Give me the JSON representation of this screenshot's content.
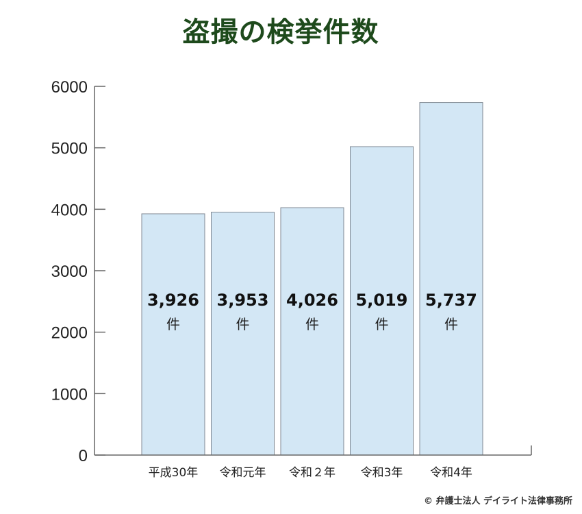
{
  "chart_data": {
    "type": "bar",
    "title": "盗撮の検挙件数",
    "categories": [
      "平成30年",
      "令和元年",
      "令和２年",
      "令和3年",
      "令和4年"
    ],
    "values": [
      3926,
      3953,
      4026,
      5019,
      5737
    ],
    "data_labels": [
      "3,926",
      "3,953",
      "4,026",
      "5,019",
      "5,737"
    ],
    "unit_label": "件",
    "ylim": [
      0,
      6000
    ],
    "yticks": [
      0,
      1000,
      2000,
      3000,
      4000,
      5000,
      6000
    ],
    "xlabel": "",
    "ylabel": "",
    "grid": false,
    "bar_color": "#d3e7f5",
    "bar_edge_color": "#808a94",
    "title_color": "#1e4a1c"
  },
  "credit": "© 弁護士法人 デイライト法律事務所"
}
